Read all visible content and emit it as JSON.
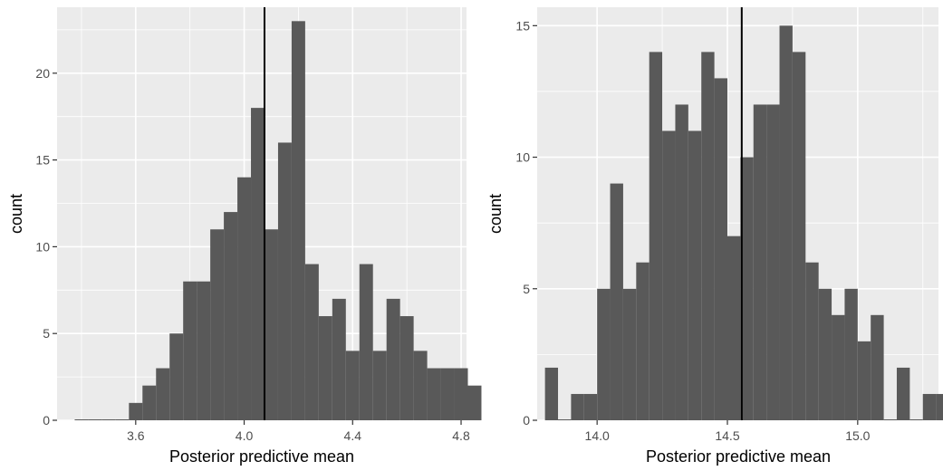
{
  "chart_data": [
    {
      "type": "bar",
      "xlabel": "Posterior predictive mean",
      "ylabel": "count",
      "xlim": [
        3.31,
        4.82
      ],
      "ylim": [
        0,
        23.8
      ],
      "xticks": [
        3.6,
        4.0,
        4.4,
        4.8
      ],
      "xtick_labels": [
        "3.6",
        "4.0",
        "4.4",
        "4.8"
      ],
      "yticks": [
        0,
        5,
        10,
        15,
        20
      ],
      "ytick_labels": [
        "0",
        "5",
        "10",
        "15",
        "20"
      ],
      "grid": true,
      "bin_width": 0.05,
      "bins_start": 3.375,
      "values": [
        0,
        0,
        0,
        0,
        1,
        2,
        3,
        5,
        8,
        8,
        11,
        12,
        14,
        18,
        11,
        16,
        23,
        9,
        6,
        7,
        4,
        9,
        4,
        7,
        6,
        4,
        3,
        3,
        3,
        2
      ],
      "vline_x": 4.075
    },
    {
      "type": "bar",
      "xlabel": "Posterior predictive mean",
      "ylabel": "count",
      "xlim": [
        13.77,
        15.31
      ],
      "ylim": [
        0,
        15.7
      ],
      "xticks": [
        14.0,
        14.5,
        15.0
      ],
      "xtick_labels": [
        "14.0",
        "14.5",
        "15.0"
      ],
      "yticks": [
        0,
        5,
        10,
        15
      ],
      "ytick_labels": [
        "0",
        "5",
        "10",
        "15"
      ],
      "grid": true,
      "bin_width": 0.05,
      "bins_start": 13.8,
      "values": [
        2,
        0,
        1,
        1,
        5,
        9,
        5,
        6,
        14,
        11,
        12,
        11,
        14,
        13,
        7,
        10,
        12,
        12,
        15,
        14,
        6,
        5,
        4,
        5,
        3,
        4,
        0,
        2,
        0,
        1,
        1
      ],
      "vline_x": 14.555
    }
  ]
}
